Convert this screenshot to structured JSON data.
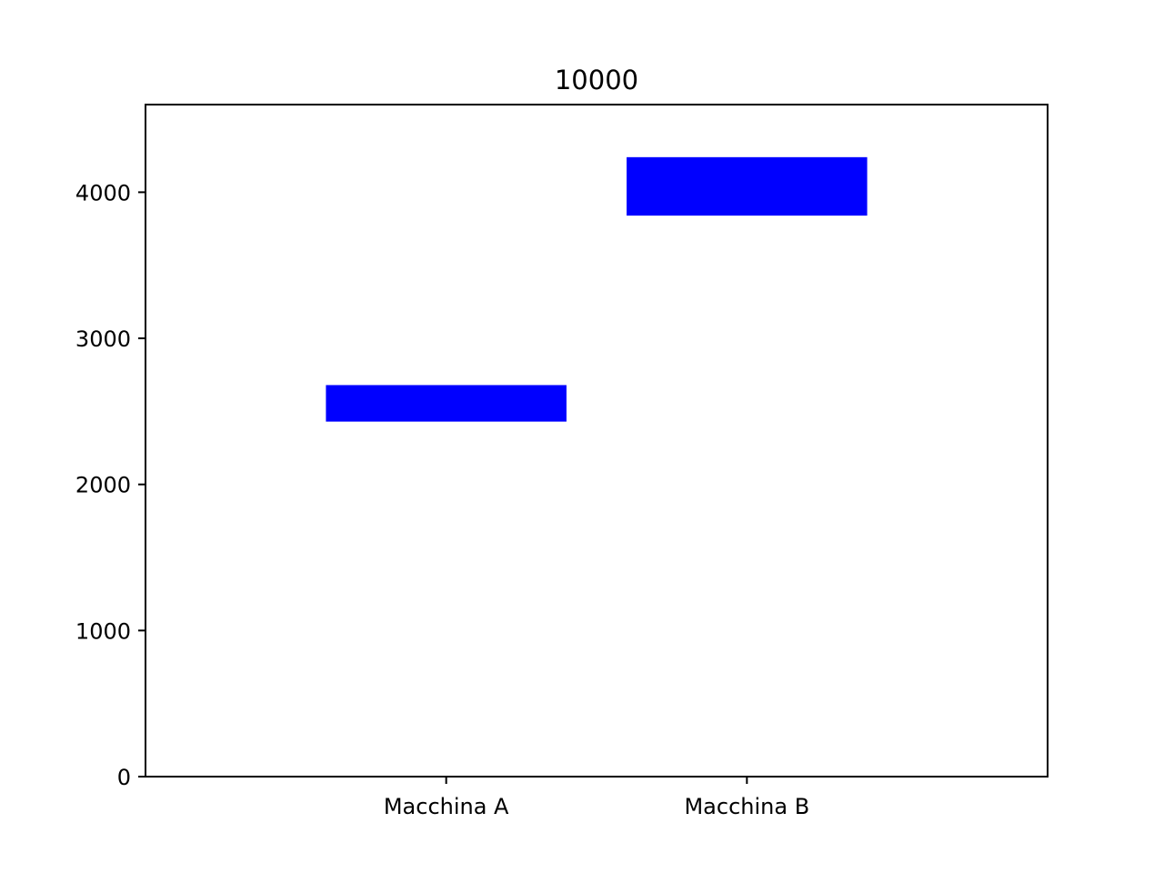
{
  "chart_data": {
    "type": "bar",
    "title": "10000",
    "xlabel": "",
    "ylabel": "",
    "categories": [
      "Macchina A",
      "Macchina B"
    ],
    "series": [
      {
        "ranges": [
          [
            2430,
            2680
          ],
          [
            3840,
            4240
          ]
        ],
        "color": "#0000ff"
      }
    ],
    "ylim": [
      0,
      4600
    ],
    "yticks": [
      0,
      1000,
      2000,
      3000,
      4000
    ],
    "ytick_labels": [
      "0",
      "1000",
      "2000",
      "3000",
      "4000"
    ],
    "xlim": [
      -1,
      2
    ],
    "grid": false,
    "legend": "none"
  }
}
